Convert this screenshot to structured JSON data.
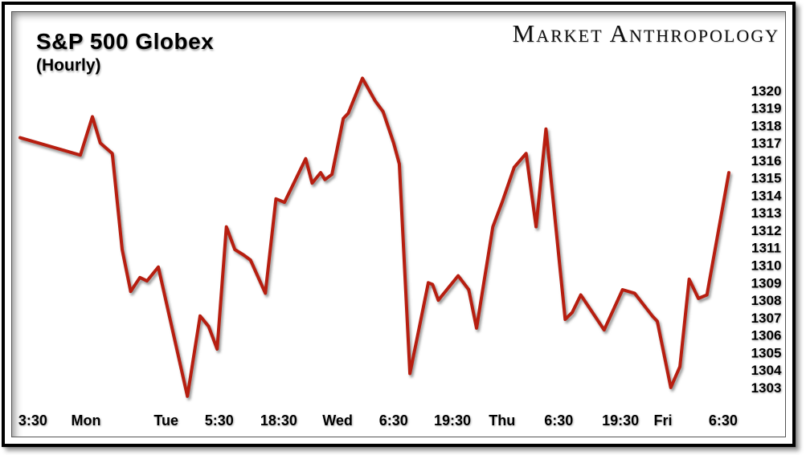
{
  "header": {
    "title": "S&P 500 Globex",
    "subtitle": "(Hourly)",
    "branding": "Market Anthropology"
  },
  "chart_data": {
    "type": "line",
    "title": "S&P 500 Globex",
    "subtitle": "(Hourly)",
    "source_label": "Market Anthropology",
    "grid": false,
    "legend": "none",
    "line_color": "#b71e10",
    "ylim": [
      1302.4,
      1321.0
    ],
    "y_ticks": [
      1320,
      1319,
      1318,
      1317,
      1316,
      1315,
      1314,
      1313,
      1312,
      1311,
      1310,
      1309,
      1308,
      1307,
      1306,
      1305,
      1304,
      1303
    ],
    "x_ticks": [
      {
        "label": "3:30",
        "pos": 0.018
      },
      {
        "label": "Mon",
        "pos": 0.093
      },
      {
        "label": "Tue",
        "pos": 0.206
      },
      {
        "label": "5:30",
        "pos": 0.281
      },
      {
        "label": "18:30",
        "pos": 0.365
      },
      {
        "label": "Wed",
        "pos": 0.448
      },
      {
        "label": "6:30",
        "pos": 0.527
      },
      {
        "label": "19:30",
        "pos": 0.61
      },
      {
        "label": "Thu",
        "pos": 0.68
      },
      {
        "label": "6:30",
        "pos": 0.76
      },
      {
        "label": "19:30",
        "pos": 0.847
      },
      {
        "label": "Fri",
        "pos": 0.907
      },
      {
        "label": "6:30",
        "pos": 0.992
      }
    ],
    "series": [
      {
        "name": "S&P 500 Globex hourly price",
        "color": "#b71e10",
        "points": [
          [
            0.0,
            1317.3
          ],
          [
            0.085,
            1316.3
          ],
          [
            0.102,
            1318.5
          ],
          [
            0.113,
            1317.0
          ],
          [
            0.13,
            1316.4
          ],
          [
            0.144,
            1310.9
          ],
          [
            0.156,
            1308.5
          ],
          [
            0.169,
            1309.3
          ],
          [
            0.179,
            1309.1
          ],
          [
            0.195,
            1309.9
          ],
          [
            0.236,
            1302.5
          ],
          [
            0.254,
            1307.1
          ],
          [
            0.266,
            1306.5
          ],
          [
            0.278,
            1305.2
          ],
          [
            0.291,
            1312.2
          ],
          [
            0.303,
            1310.9
          ],
          [
            0.315,
            1310.6
          ],
          [
            0.325,
            1310.3
          ],
          [
            0.346,
            1308.4
          ],
          [
            0.361,
            1313.8
          ],
          [
            0.373,
            1313.6
          ],
          [
            0.403,
            1316.1
          ],
          [
            0.412,
            1314.7
          ],
          [
            0.424,
            1315.3
          ],
          [
            0.43,
            1314.9
          ],
          [
            0.44,
            1315.2
          ],
          [
            0.456,
            1318.4
          ],
          [
            0.463,
            1318.7
          ],
          [
            0.483,
            1320.7
          ],
          [
            0.501,
            1319.4
          ],
          [
            0.512,
            1318.8
          ],
          [
            0.527,
            1317.0
          ],
          [
            0.535,
            1315.8
          ],
          [
            0.55,
            1303.8
          ],
          [
            0.576,
            1309.0
          ],
          [
            0.582,
            1308.9
          ],
          [
            0.59,
            1308.0
          ],
          [
            0.618,
            1309.4
          ],
          [
            0.633,
            1308.6
          ],
          [
            0.644,
            1306.4
          ],
          [
            0.667,
            1312.2
          ],
          [
            0.68,
            1313.6
          ],
          [
            0.697,
            1315.6
          ],
          [
            0.714,
            1316.4
          ],
          [
            0.728,
            1312.2
          ],
          [
            0.742,
            1317.8
          ],
          [
            0.769,
            1306.9
          ],
          [
            0.779,
            1307.3
          ],
          [
            0.791,
            1308.3
          ],
          [
            0.824,
            1306.3
          ],
          [
            0.85,
            1308.6
          ],
          [
            0.867,
            1308.4
          ],
          [
            0.892,
            1307.1
          ],
          [
            0.899,
            1306.8
          ],
          [
            0.918,
            1303.0
          ],
          [
            0.931,
            1304.2
          ],
          [
            0.944,
            1309.2
          ],
          [
            0.957,
            1308.1
          ],
          [
            0.969,
            1308.3
          ],
          [
            1.0,
            1315.3
          ]
        ]
      }
    ]
  }
}
